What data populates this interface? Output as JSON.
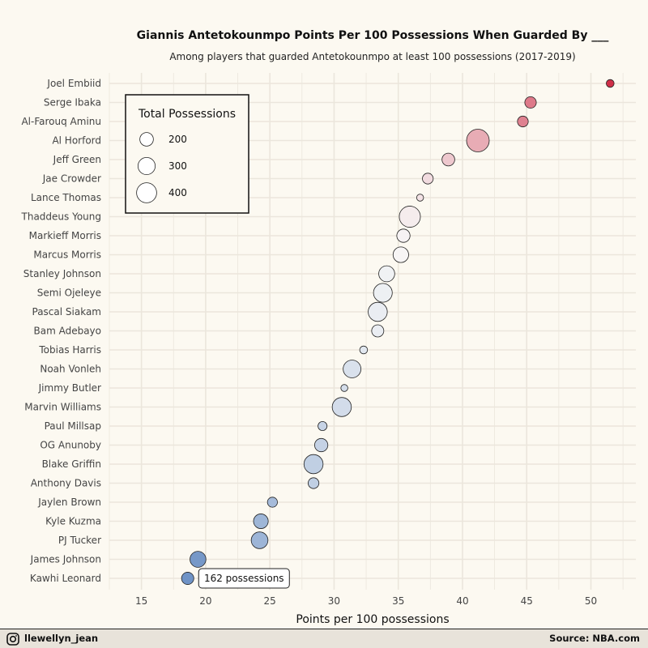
{
  "title": "Giannis Antetokounmpo Points Per 100 Possessions When Guarded By ___",
  "subtitle": "Among players that guarded Antetokounmpo at least 100 possessions (2017-2019)",
  "footer": {
    "handle": "llewellyn_jean",
    "source": "Source: NBA.com"
  },
  "chart_data": {
    "type": "scatter",
    "title": "Giannis Antetokounmpo Points Per 100 Possessions When Guarded By ___",
    "subtitle": "Among players that guarded Antetokounmpo at least 100 possessions (2017-2019)",
    "xlabel": "Points per 100 possessions",
    "ylabel": "",
    "xlim": [
      12.5,
      53.5
    ],
    "xticks": [
      15,
      20,
      25,
      30,
      35,
      40,
      45,
      50
    ],
    "grid": true,
    "legend": {
      "title": "Total Possessions",
      "placement": "top-left",
      "sizes": [
        200,
        300,
        400
      ],
      "labels": [
        "200",
        "300",
        "400"
      ]
    },
    "color_scale": {
      "low": "#6f93c6",
      "mid": "#f7f7f7",
      "high": "#cf2f48",
      "midpoint": 35
    },
    "points": [
      {
        "player": "Joel Embiid",
        "x": 51.5,
        "possessions": 110
      },
      {
        "player": "Serge Ibaka",
        "x": 45.3,
        "possessions": 150
      },
      {
        "player": "Al-Farouq Aminu",
        "x": 44.7,
        "possessions": 140
      },
      {
        "player": "Al Horford",
        "x": 41.2,
        "possessions": 460
      },
      {
        "player": "Jeff Green",
        "x": 38.9,
        "possessions": 170
      },
      {
        "player": "Jae Crowder",
        "x": 37.3,
        "possessions": 140
      },
      {
        "player": "Lance Thomas",
        "x": 36.7,
        "possessions": 105
      },
      {
        "player": "Thaddeus Young",
        "x": 35.9,
        "possessions": 400
      },
      {
        "player": "Markieff Morris",
        "x": 35.4,
        "possessions": 180
      },
      {
        "player": "Marcus Morris",
        "x": 35.2,
        "possessions": 230
      },
      {
        "player": "Stanley Johnson",
        "x": 34.1,
        "possessions": 240
      },
      {
        "player": "Semi Ojeleye",
        "x": 33.8,
        "possessions": 320
      },
      {
        "player": "Pascal Siakam",
        "x": 33.4,
        "possessions": 330
      },
      {
        "player": "Bam Adebayo",
        "x": 33.4,
        "possessions": 160
      },
      {
        "player": "Tobias Harris",
        "x": 32.3,
        "possessions": 110
      },
      {
        "player": "Noah Vonleh",
        "x": 31.4,
        "possessions": 290
      },
      {
        "player": "Jimmy Butler",
        "x": 30.8,
        "possessions": 105
      },
      {
        "player": "Marvin Williams",
        "x": 30.6,
        "possessions": 330
      },
      {
        "player": "Paul Millsap",
        "x": 29.1,
        "possessions": 120
      },
      {
        "player": "OG Anunoby",
        "x": 29.0,
        "possessions": 180
      },
      {
        "player": "Blake Griffin",
        "x": 28.4,
        "possessions": 330
      },
      {
        "player": "Anthony Davis",
        "x": 28.4,
        "possessions": 140
      },
      {
        "player": "Jaylen Brown",
        "x": 25.2,
        "possessions": 130
      },
      {
        "player": "Kyle Kuzma",
        "x": 24.3,
        "possessions": 210
      },
      {
        "player": "PJ Tucker",
        "x": 24.2,
        "possessions": 260
      },
      {
        "player": "James Johnson",
        "x": 19.4,
        "possessions": 240
      },
      {
        "player": "Kawhi Leonard",
        "x": 18.6,
        "possessions": 162
      }
    ],
    "annotation": {
      "player": "Kawhi Leonard",
      "text": "162 possessions"
    }
  }
}
